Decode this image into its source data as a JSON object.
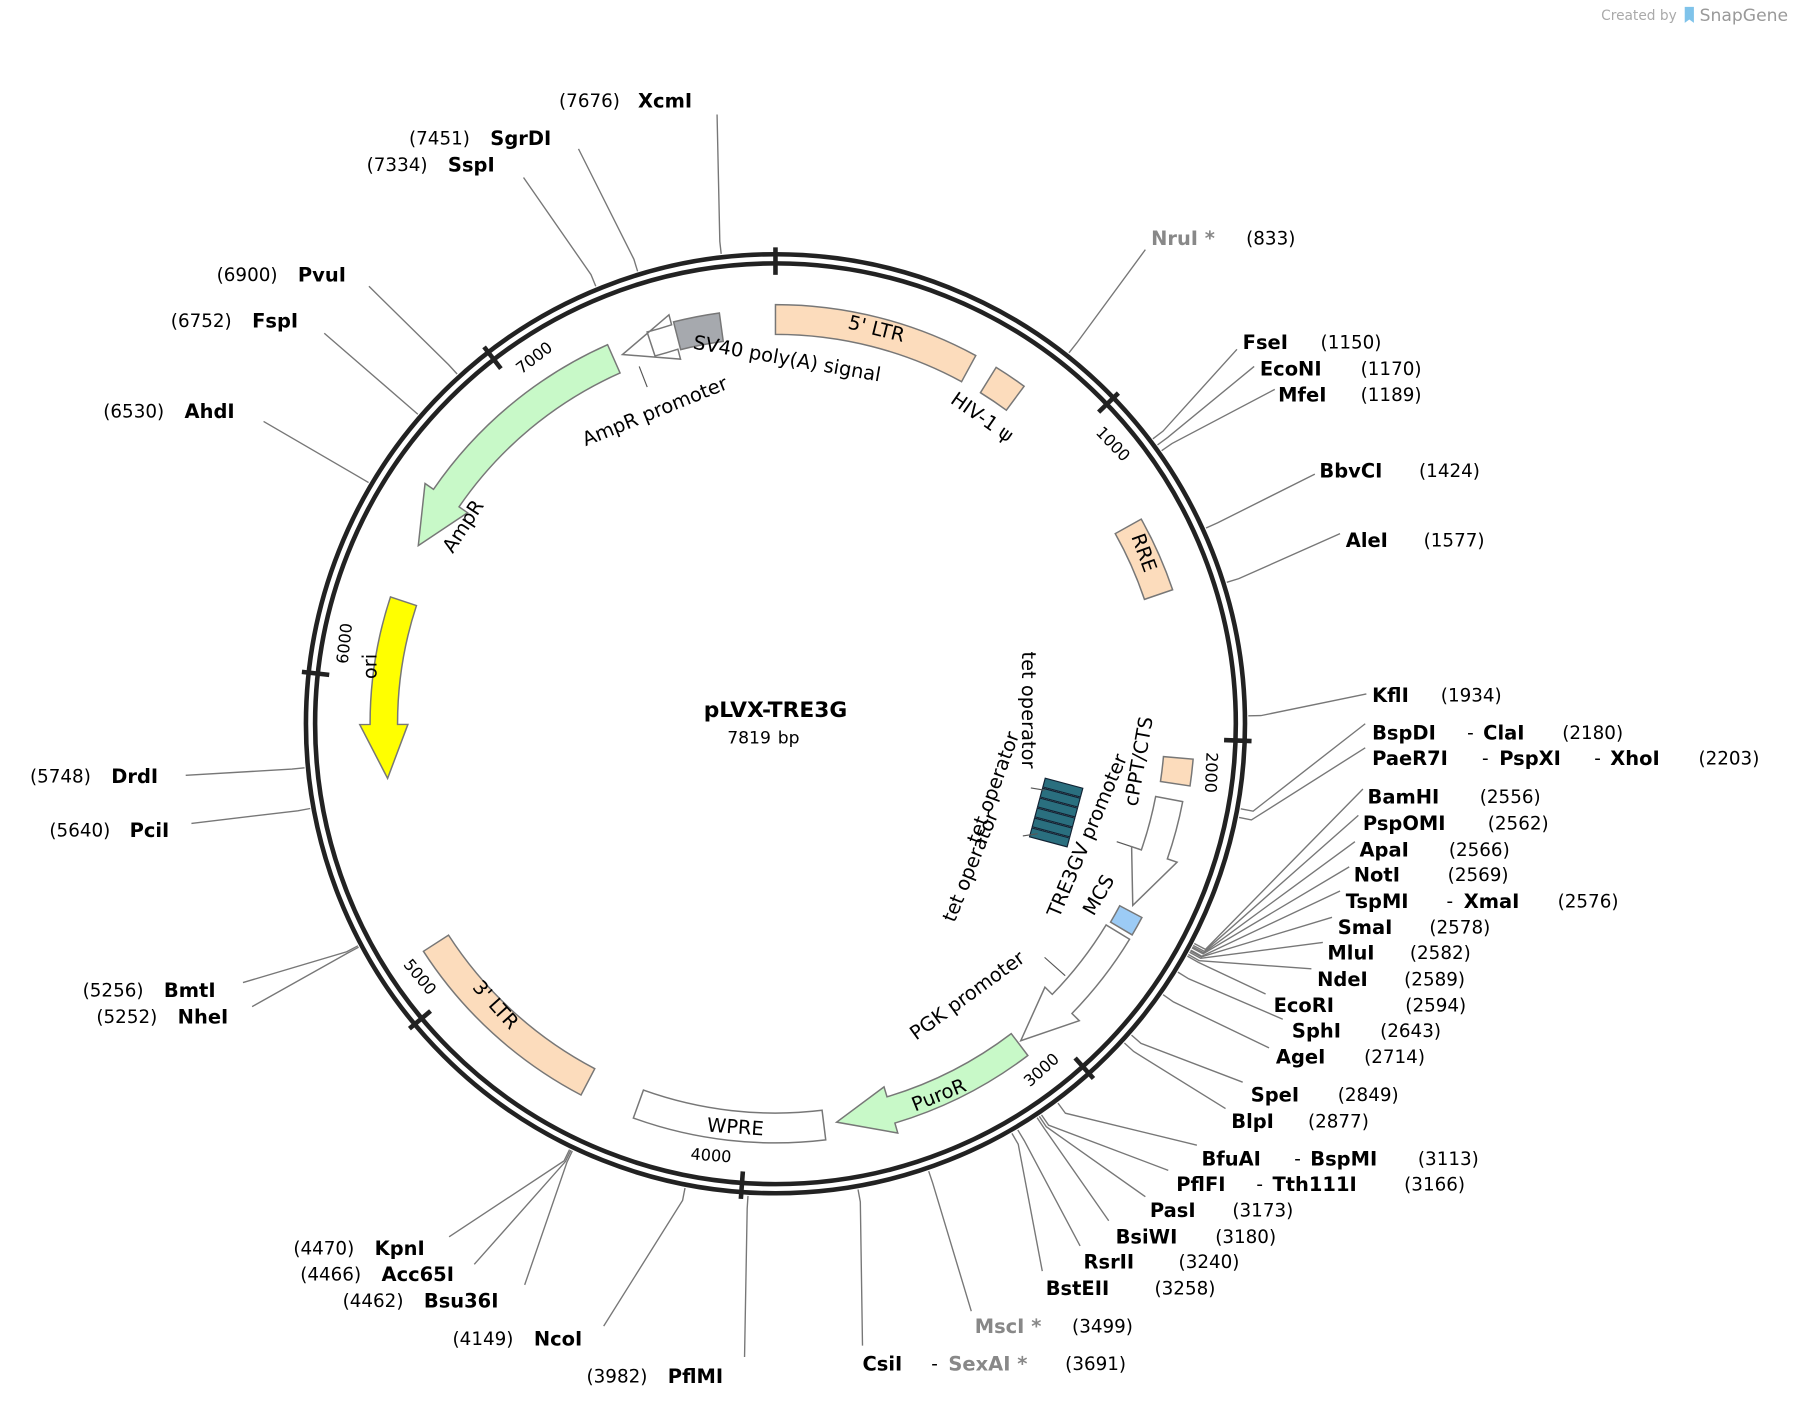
{
  "header": {
    "credit": "Created by",
    "brand": "SnapGene"
  },
  "plasmid": {
    "name": "pLVX-TRE3G",
    "length": 7819,
    "unit": "bp"
  },
  "ring_ticks": [
    1000,
    2000,
    3000,
    4000,
    5000,
    6000,
    7000
  ],
  "enzyme_separator": "-",
  "features": [
    {
      "label": "5' LTR"
    },
    {
      "label": "HIV-1 ψ"
    },
    {
      "label": "RRE"
    },
    {
      "label": "cPPT/CTS"
    },
    {
      "label": "TRE3GV promoter"
    },
    {
      "label": "MCS"
    },
    {
      "label": "PGK promoter"
    },
    {
      "label": "PuroR"
    },
    {
      "label": "WPRE"
    },
    {
      "label": "3' LTR"
    },
    {
      "label": "ori"
    },
    {
      "label": "AmpR"
    },
    {
      "label": "AmpR promoter"
    },
    {
      "label": "SV40 poly(A) signal"
    },
    {
      "label": "tet operator"
    },
    {
      "label": "tet operator"
    },
    {
      "label": "tet operator"
    }
  ],
  "sites": [
    {
      "names": [
        "XcmI"
      ],
      "position": "(7676)"
    },
    {
      "names": [
        "SgrDI"
      ],
      "position": "(7451)"
    },
    {
      "names": [
        "SspI"
      ],
      "position": "(7334)"
    },
    {
      "names": [
        "PvuI"
      ],
      "position": "(6900)"
    },
    {
      "names": [
        "FspI"
      ],
      "position": "(6752)"
    },
    {
      "names": [
        "AhdI"
      ],
      "position": "(6530)"
    },
    {
      "names": [
        "DrdI"
      ],
      "position": "(5748)"
    },
    {
      "names": [
        "PciI"
      ],
      "position": "(5640)"
    },
    {
      "names": [
        "BmtI"
      ],
      "position": "(5256)"
    },
    {
      "names": [
        "NheI"
      ],
      "position": "(5252)"
    },
    {
      "names": [
        "KpnI"
      ],
      "position": "(4470)"
    },
    {
      "names": [
        "Acc65I"
      ],
      "position": "(4466)"
    },
    {
      "names": [
        "Bsu36I"
      ],
      "position": "(4462)"
    },
    {
      "names": [
        "NcoI"
      ],
      "position": "(4149)"
    },
    {
      "names": [
        "PflMI"
      ],
      "position": "(3982)"
    },
    {
      "names": [
        "CsiI",
        "SexAI *"
      ],
      "position": "(3691)"
    },
    {
      "names": [
        "MscI *"
      ],
      "position": "(3499)"
    },
    {
      "names": [
        "BstEII"
      ],
      "position": "(3258)"
    },
    {
      "names": [
        "RsrII"
      ],
      "position": "(3240)"
    },
    {
      "names": [
        "BsiWI"
      ],
      "position": "(3180)"
    },
    {
      "names": [
        "PasI"
      ],
      "position": "(3173)"
    },
    {
      "names": [
        "PflFI",
        "Tth111I"
      ],
      "position": "(3166)"
    },
    {
      "names": [
        "BfuAI",
        "BspMI"
      ],
      "position": "(3113)"
    },
    {
      "names": [
        "BlpI"
      ],
      "position": "(2877)"
    },
    {
      "names": [
        "SpeI"
      ],
      "position": "(2849)"
    },
    {
      "names": [
        "AgeI"
      ],
      "position": "(2714)"
    },
    {
      "names": [
        "SphI"
      ],
      "position": "(2643)"
    },
    {
      "names": [
        "EcoRI"
      ],
      "position": "(2594)"
    },
    {
      "names": [
        "NdeI"
      ],
      "position": "(2589)"
    },
    {
      "names": [
        "MluI"
      ],
      "position": "(2582)"
    },
    {
      "names": [
        "SmaI"
      ],
      "position": "(2578)"
    },
    {
      "names": [
        "TspMI",
        "XmaI"
      ],
      "position": "(2576)"
    },
    {
      "names": [
        "NotI"
      ],
      "position": "(2569)"
    },
    {
      "names": [
        "ApaI"
      ],
      "position": "(2566)"
    },
    {
      "names": [
        "PspOMI"
      ],
      "position": "(2562)"
    },
    {
      "names": [
        "BamHI"
      ],
      "position": "(2556)"
    },
    {
      "names": [
        "PaeR7I",
        "PspXI",
        "XhoI"
      ],
      "position": "(2203)"
    },
    {
      "names": [
        "BspDI",
        "ClaI"
      ],
      "position": "(2180)"
    },
    {
      "names": [
        "KflI"
      ],
      "position": "(1934)"
    },
    {
      "names": [
        "AleI"
      ],
      "position": "(1577)"
    },
    {
      "names": [
        "BbvCI"
      ],
      "position": "(1424)"
    },
    {
      "names": [
        "MfeI"
      ],
      "position": "(1189)"
    },
    {
      "names": [
        "EcoNI"
      ],
      "position": "(1170)"
    },
    {
      "names": [
        "FseI"
      ],
      "position": "(1150)"
    },
    {
      "names": [
        "NruI *"
      ],
      "position": "(833)"
    }
  ]
}
